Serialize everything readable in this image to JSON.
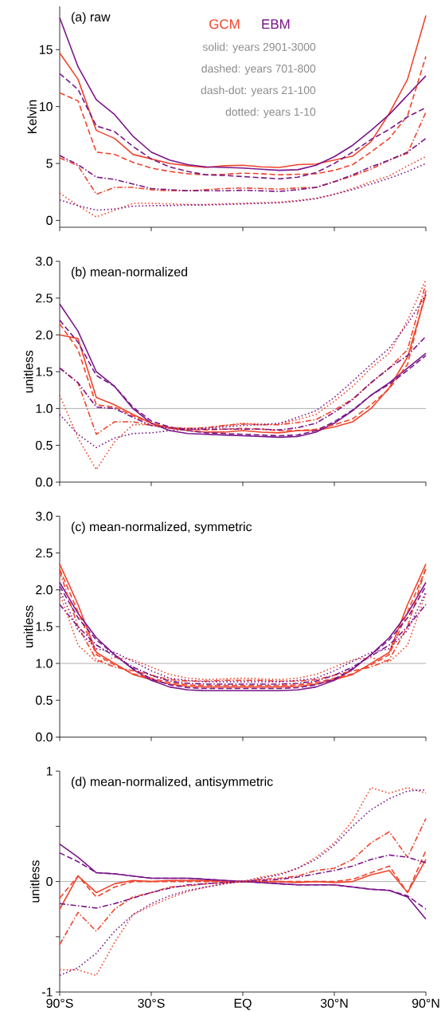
{
  "chart_data": [
    {
      "type": "line",
      "title": "(a) raw",
      "ylabel": "Kelvin",
      "tick_labels": "y",
      "annotations": [
        "GCM",
        "EBM",
        "solid: years 2901-3000",
        "dashed: years 701-800",
        "dash-dot: years 21-100",
        "dotted: years 1-10"
      ],
      "categories": [
        null,
        null,
        null,
        null,
        null,
        null,
        null,
        null,
        null,
        null,
        null,
        null,
        null,
        null,
        null,
        null,
        null,
        null,
        null,
        null,
        null
      ],
      "ylim": [
        -0.6,
        18.8
      ],
      "yticks": [
        0,
        5,
        10,
        15
      ],
      "series": [
        {
          "color": "#f0442c",
          "line_style": "solid",
          "values": [
            14.7,
            12.4,
            7.9,
            7.2,
            5.8,
            5.4,
            5.0,
            4.8,
            4.65,
            4.8,
            4.85,
            4.7,
            4.65,
            4.9,
            4.95,
            5.3,
            5.65,
            6.9,
            9.4,
            12.4,
            18.0
          ]
        },
        {
          "color": "#7a1689",
          "line_style": "solid",
          "values": [
            17.8,
            13.5,
            10.6,
            9.3,
            7.4,
            6.0,
            5.3,
            4.9,
            4.7,
            4.65,
            4.6,
            4.5,
            4.4,
            4.45,
            4.85,
            5.6,
            6.6,
            7.9,
            9.3,
            11.0,
            12.7
          ]
        },
        {
          "color": "#f0442c",
          "line_style": "dashed",
          "values": [
            11.2,
            10.5,
            6.0,
            5.8,
            5.1,
            4.6,
            4.3,
            4.1,
            4.0,
            4.05,
            4.15,
            4.1,
            4.0,
            4.05,
            4.1,
            4.4,
            4.9,
            6.0,
            7.2,
            9.2,
            14.4
          ]
        },
        {
          "color": "#7a1689",
          "line_style": "dashed",
          "values": [
            12.9,
            11.5,
            8.3,
            7.8,
            6.5,
            5.4,
            4.7,
            4.3,
            4.0,
            3.95,
            3.85,
            3.75,
            3.65,
            3.8,
            4.2,
            5.0,
            6.0,
            7.1,
            8.0,
            9.1,
            9.9
          ]
        },
        {
          "color": "#f0442c",
          "line_style": "dashdot",
          "values": [
            5.5,
            4.8,
            2.3,
            2.9,
            2.9,
            2.7,
            2.6,
            2.6,
            2.7,
            2.8,
            2.85,
            2.8,
            2.75,
            2.85,
            2.9,
            3.4,
            3.9,
            4.5,
            5.3,
            5.9,
            9.5
          ]
        },
        {
          "color": "#7a1689",
          "line_style": "dashdot",
          "values": [
            5.7,
            4.9,
            3.8,
            3.6,
            3.2,
            2.8,
            2.7,
            2.6,
            2.6,
            2.6,
            2.65,
            2.6,
            2.55,
            2.7,
            2.9,
            3.4,
            4.0,
            4.7,
            5.3,
            6.0,
            7.2
          ]
        },
        {
          "color": "#f0442c",
          "line_style": "dotted",
          "values": [
            2.4,
            1.3,
            0.3,
            0.9,
            1.5,
            1.5,
            1.45,
            1.4,
            1.4,
            1.45,
            1.5,
            1.55,
            1.6,
            1.75,
            1.95,
            2.3,
            2.8,
            3.4,
            3.9,
            4.8,
            5.6
          ]
        },
        {
          "color": "#7a1689",
          "line_style": "dotted",
          "values": [
            1.8,
            1.3,
            0.9,
            1.0,
            1.25,
            1.3,
            1.3,
            1.35,
            1.35,
            1.4,
            1.45,
            1.5,
            1.55,
            1.7,
            1.9,
            2.3,
            2.7,
            3.2,
            3.7,
            4.3,
            5.0
          ]
        }
      ]
    },
    {
      "type": "line",
      "title": "(b) mean-normalized",
      "ylabel": "unitless",
      "tick_labels": "y",
      "categories": [
        null,
        null,
        null,
        null,
        null,
        null,
        null,
        null,
        null,
        null,
        null,
        null,
        null,
        null,
        null,
        null,
        null,
        null,
        null,
        null,
        null
      ],
      "ylim": [
        0,
        3
      ],
      "yticks": [
        {
          "value": 0,
          "label": "0.0"
        },
        {
          "value": 0.5,
          "label": "0.5"
        },
        {
          "value": 1,
          "label": "1.0"
        },
        {
          "value": 1.5,
          "label": "1.5"
        },
        {
          "value": 2,
          "label": "2.0"
        },
        {
          "value": 2.5,
          "label": "2.5"
        },
        {
          "value": 3,
          "label": "3.0"
        }
      ],
      "ref_lines": [
        {
          "axis": "y",
          "value": 1,
          "color": "#9a9a9a"
        }
      ],
      "series": [
        {
          "color": "#f0442c",
          "line_style": "solid",
          "values": [
            2.0,
            1.95,
            1.15,
            1.05,
            0.92,
            0.8,
            0.73,
            0.7,
            0.68,
            0.68,
            0.7,
            0.68,
            0.67,
            0.7,
            0.7,
            0.75,
            0.82,
            1.0,
            1.28,
            1.7,
            2.55
          ]
        },
        {
          "color": "#7a1689",
          "line_style": "solid",
          "values": [
            2.42,
            2.05,
            1.5,
            1.3,
            1.0,
            0.8,
            0.7,
            0.66,
            0.65,
            0.64,
            0.63,
            0.62,
            0.61,
            0.62,
            0.68,
            0.8,
            0.97,
            1.18,
            1.35,
            1.55,
            1.75
          ]
        },
        {
          "color": "#f0442c",
          "line_style": "dashed",
          "values": [
            2.15,
            1.8,
            1.05,
            1.02,
            0.9,
            0.8,
            0.74,
            0.72,
            0.71,
            0.72,
            0.73,
            0.72,
            0.7,
            0.7,
            0.72,
            0.78,
            0.86,
            1.05,
            1.27,
            1.6,
            2.6
          ]
        },
        {
          "color": "#7a1689",
          "line_style": "dashed",
          "values": [
            2.2,
            1.9,
            1.45,
            1.3,
            1.02,
            0.83,
            0.75,
            0.7,
            0.67,
            0.66,
            0.65,
            0.64,
            0.63,
            0.64,
            0.7,
            0.82,
            0.98,
            1.18,
            1.33,
            1.52,
            1.72
          ]
        },
        {
          "color": "#f0442c",
          "line_style": "dashdot",
          "values": [
            1.55,
            1.35,
            0.65,
            0.82,
            0.82,
            0.77,
            0.74,
            0.73,
            0.74,
            0.77,
            0.79,
            0.78,
            0.78,
            0.81,
            0.85,
            0.98,
            1.13,
            1.35,
            1.55,
            1.8,
            2.7
          ]
        },
        {
          "color": "#7a1689",
          "line_style": "dashdot",
          "values": [
            1.55,
            1.35,
            1.02,
            1.0,
            0.88,
            0.77,
            0.74,
            0.72,
            0.72,
            0.72,
            0.72,
            0.72,
            0.71,
            0.74,
            0.8,
            0.95,
            1.12,
            1.35,
            1.55,
            1.72,
            1.98
          ]
        },
        {
          "color": "#f0442c",
          "line_style": "dotted",
          "values": [
            1.18,
            0.6,
            0.17,
            0.55,
            0.78,
            0.78,
            0.74,
            0.73,
            0.74,
            0.77,
            0.8,
            0.79,
            0.79,
            0.85,
            0.92,
            1.1,
            1.3,
            1.55,
            1.75,
            2.2,
            2.75
          ]
        },
        {
          "color": "#7a1689",
          "line_style": "dotted",
          "values": [
            0.92,
            0.65,
            0.47,
            0.6,
            0.66,
            0.67,
            0.7,
            0.72,
            0.73,
            0.75,
            0.77,
            0.78,
            0.8,
            0.88,
            0.97,
            1.15,
            1.37,
            1.6,
            1.82,
            2.15,
            2.55
          ]
        }
      ]
    },
    {
      "type": "line",
      "title": "(c) mean-normalized, symmetric",
      "ylabel": "unitless",
      "tick_labels": "y",
      "categories": [
        null,
        null,
        null,
        null,
        null,
        null,
        null,
        null,
        null,
        null,
        null,
        null,
        null,
        null,
        null,
        null,
        null,
        null,
        null,
        null,
        null
      ],
      "ylim": [
        0,
        3
      ],
      "yticks": [
        {
          "value": 0,
          "label": "0.0"
        },
        {
          "value": 0.5,
          "label": "0.5"
        },
        {
          "value": 1,
          "label": "1.0"
        },
        {
          "value": 1.5,
          "label": "1.5"
        },
        {
          "value": 2,
          "label": "2.0"
        },
        {
          "value": 2.5,
          "label": "2.5"
        },
        {
          "value": 3,
          "label": "3.0"
        }
      ],
      "ref_lines": [
        {
          "axis": "y",
          "value": 1,
          "color": "#9a9a9a"
        }
      ],
      "series": [
        {
          "color": "#f0442c",
          "line_style": "solid",
          "values": [
            2.35,
            1.8,
            1.15,
            1.0,
            0.85,
            0.78,
            0.72,
            0.69,
            0.68,
            0.68,
            0.68,
            0.68,
            0.68,
            0.69,
            0.72,
            0.78,
            0.85,
            1.0,
            1.15,
            1.8,
            2.35
          ]
        },
        {
          "color": "#7a1689",
          "line_style": "solid",
          "values": [
            2.1,
            1.68,
            1.35,
            1.12,
            0.92,
            0.77,
            0.68,
            0.64,
            0.63,
            0.63,
            0.63,
            0.63,
            0.63,
            0.64,
            0.68,
            0.77,
            0.92,
            1.12,
            1.35,
            1.68,
            2.1
          ]
        },
        {
          "color": "#f0442c",
          "line_style": "dashed",
          "values": [
            2.28,
            1.7,
            1.12,
            0.98,
            0.86,
            0.8,
            0.74,
            0.71,
            0.7,
            0.7,
            0.7,
            0.7,
            0.7,
            0.71,
            0.74,
            0.8,
            0.86,
            0.98,
            1.12,
            1.7,
            2.28
          ]
        },
        {
          "color": "#7a1689",
          "line_style": "dashed",
          "values": [
            2.05,
            1.62,
            1.32,
            1.12,
            0.93,
            0.79,
            0.71,
            0.67,
            0.66,
            0.66,
            0.66,
            0.66,
            0.66,
            0.67,
            0.71,
            0.79,
            0.93,
            1.12,
            1.32,
            1.62,
            2.05
          ]
        },
        {
          "color": "#f0442c",
          "line_style": "dashdot",
          "values": [
            2.25,
            1.5,
            1.05,
            0.95,
            0.9,
            0.84,
            0.78,
            0.76,
            0.76,
            0.77,
            0.77,
            0.77,
            0.76,
            0.76,
            0.78,
            0.84,
            0.9,
            0.95,
            1.05,
            1.5,
            2.3
          ]
        },
        {
          "color": "#7a1689",
          "line_style": "dashdot",
          "values": [
            1.8,
            1.5,
            1.25,
            1.1,
            0.95,
            0.84,
            0.76,
            0.73,
            0.72,
            0.72,
            0.72,
            0.72,
            0.72,
            0.73,
            0.76,
            0.84,
            0.95,
            1.1,
            1.25,
            1.5,
            1.8
          ]
        },
        {
          "color": "#f0442c",
          "line_style": "dotted",
          "values": [
            1.95,
            1.25,
            1.02,
            1.08,
            1.05,
            0.95,
            0.85,
            0.8,
            0.78,
            0.79,
            0.8,
            0.79,
            0.78,
            0.8,
            0.85,
            0.95,
            1.05,
            1.08,
            1.02,
            1.25,
            1.95
          ]
        },
        {
          "color": "#7a1689",
          "line_style": "dotted",
          "values": [
            2.0,
            1.45,
            1.2,
            1.15,
            1.03,
            0.9,
            0.8,
            0.77,
            0.75,
            0.75,
            0.75,
            0.75,
            0.75,
            0.77,
            0.8,
            0.9,
            1.03,
            1.15,
            1.2,
            1.45,
            1.97
          ]
        }
      ]
    },
    {
      "type": "line",
      "title": "(d) mean-normalized, antisymmetric",
      "ylabel": "unitless",
      "categories": [
        "90°S",
        null,
        null,
        null,
        null,
        "30°S",
        null,
        null,
        null,
        null,
        "EQ",
        null,
        null,
        null,
        null,
        "30°N",
        null,
        null,
        null,
        null,
        "90°N"
      ],
      "ylim": [
        -1,
        1
      ],
      "yticks": [
        -1,
        {
          "value": -0.5,
          "label": null
        },
        0,
        {
          "value": 0.5,
          "label": null
        },
        1
      ],
      "ref_lines": [
        {
          "axis": "y",
          "value": 0,
          "color": "#9a9a9a"
        }
      ],
      "series": [
        {
          "color": "#f0442c",
          "line_style": "solid",
          "values": [
            -0.25,
            0.05,
            -0.1,
            -0.02,
            0.01,
            0.0,
            0.01,
            0.01,
            0.01,
            0.0,
            0,
            0.0,
            0.0,
            -0.01,
            0.0,
            -0.01,
            0.0,
            0.06,
            0.1,
            -0.1,
            0.2
          ]
        },
        {
          "color": "#7a1689",
          "line_style": "solid",
          "values": [
            0.34,
            0.22,
            0.08,
            0.07,
            0.05,
            0.03,
            0.03,
            0.03,
            0.02,
            0.01,
            0,
            -0.01,
            -0.02,
            -0.03,
            -0.03,
            -0.03,
            -0.05,
            -0.07,
            -0.08,
            -0.14,
            -0.34
          ]
        },
        {
          "color": "#f0442c",
          "line_style": "dashed",
          "values": [
            -0.15,
            0.05,
            -0.14,
            -0.05,
            0.0,
            0.0,
            0.0,
            0.0,
            0.0,
            0.0,
            0,
            0.0,
            0.0,
            0.0,
            0.0,
            0.0,
            0.02,
            0.08,
            0.14,
            -0.1,
            0.28
          ]
        },
        {
          "color": "#7a1689",
          "line_style": "dashed",
          "values": [
            0.26,
            0.18,
            0.08,
            0.07,
            0.05,
            0.03,
            0.03,
            0.03,
            0.02,
            0.01,
            0,
            -0.01,
            -0.02,
            -0.03,
            -0.03,
            -0.03,
            -0.05,
            -0.07,
            -0.08,
            -0.13,
            -0.25
          ]
        },
        {
          "color": "#f0442c",
          "line_style": "dashdot",
          "values": [
            -0.57,
            -0.28,
            -0.45,
            -0.25,
            -0.14,
            -0.1,
            -0.05,
            -0.04,
            -0.02,
            -0.01,
            0,
            0.02,
            0.03,
            0.05,
            0.1,
            0.12,
            0.2,
            0.35,
            0.45,
            0.22,
            0.57
          ]
        },
        {
          "color": "#7a1689",
          "line_style": "dashdot",
          "values": [
            -0.2,
            -0.22,
            -0.24,
            -0.2,
            -0.15,
            -0.1,
            -0.06,
            -0.03,
            -0.02,
            -0.01,
            0,
            0.01,
            0.02,
            0.04,
            0.07,
            0.1,
            0.14,
            0.2,
            0.24,
            0.22,
            0.17
          ]
        },
        {
          "color": "#f0442c",
          "line_style": "dotted",
          "values": [
            -0.8,
            -0.8,
            -0.85,
            -0.55,
            -0.3,
            -0.22,
            -0.15,
            -0.09,
            -0.05,
            -0.02,
            0,
            0.04,
            0.07,
            0.12,
            0.22,
            0.35,
            0.55,
            0.85,
            0.8,
            0.85,
            0.8
          ]
        },
        {
          "color": "#7a1689",
          "line_style": "dotted",
          "values": [
            -0.85,
            -0.78,
            -0.65,
            -0.45,
            -0.3,
            -0.2,
            -0.13,
            -0.08,
            -0.05,
            -0.02,
            0,
            0.03,
            0.06,
            0.12,
            0.2,
            0.33,
            0.5,
            0.65,
            0.75,
            0.82,
            0.83
          ]
        }
      ]
    }
  ]
}
